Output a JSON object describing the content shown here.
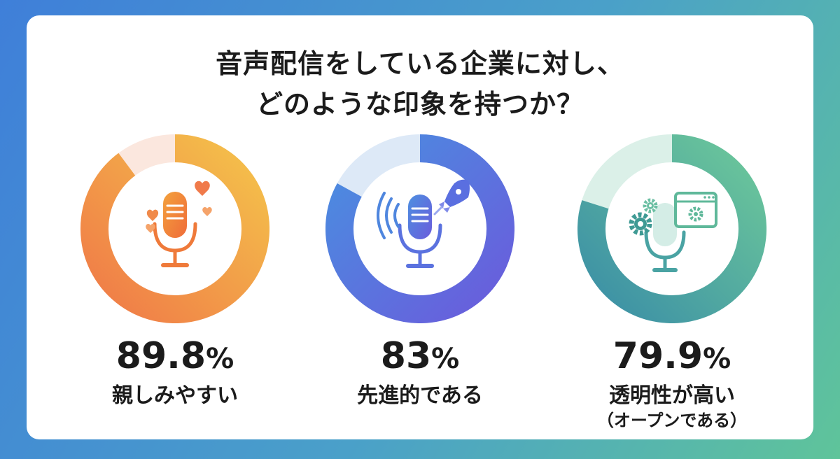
{
  "title_line1": "音声配信をしている企業に対し、",
  "title_line2": "どのような印象を持つか？",
  "chart_data": {
    "type": "pie",
    "title": "音声配信をしている企業に対し、どのような印象を持つか？",
    "unit": "%",
    "series": [
      {
        "name": "親しみやすい",
        "value": 89.8,
        "display": "89.8",
        "label": "親しみやすい",
        "sublabel": "",
        "icon": "microphone-hearts-icon",
        "color_start": "#f07a47",
        "color_end": "#f4c24b",
        "remainder_color": "#fbe7de"
      },
      {
        "name": "先進的である",
        "value": 83,
        "display": "83",
        "label": "先進的である",
        "sublabel": "",
        "icon": "microphone-rocket-icon",
        "color_start": "#4a8ee0",
        "color_end": "#6a5cdc",
        "remainder_color": "#dde9f7"
      },
      {
        "name": "透明性が高い",
        "value": 79.9,
        "display": "79.9",
        "label": "透明性が高い",
        "sublabel": "（オープンである）",
        "icon": "microphone-gears-window-icon",
        "color_start": "#3b8fa6",
        "color_end": "#6cc79a",
        "remainder_color": "#dbf0e8"
      }
    ]
  }
}
